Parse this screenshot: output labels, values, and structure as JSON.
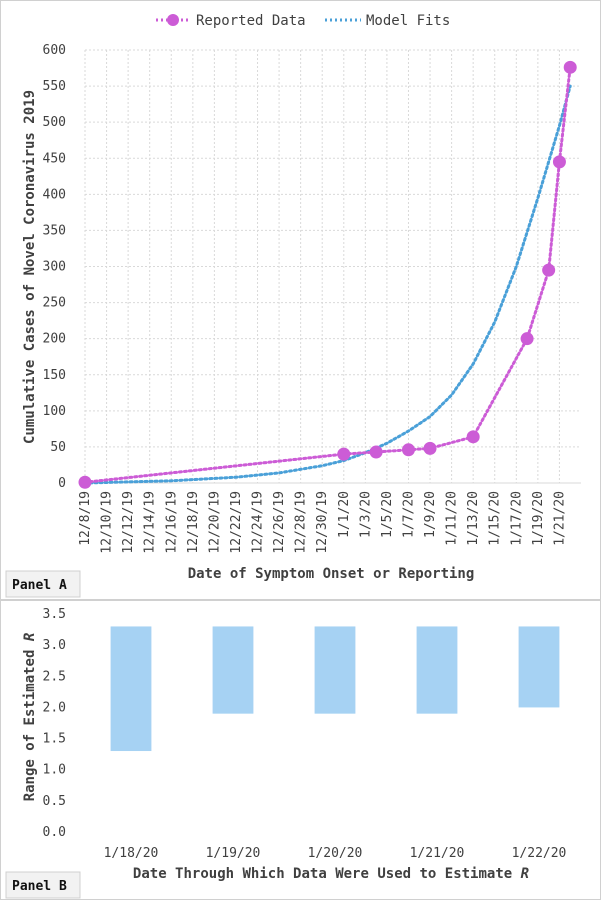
{
  "panel_a_label": "Panel A",
  "panel_b_label": "Panel B",
  "colors": {
    "reported": "#cc5cd6",
    "model": "#4aa0d8",
    "bar": "#a6d2f3",
    "grid": "#d9d9d9",
    "text": "#404040"
  },
  "chart_data": [
    {
      "type": "line",
      "legend": {
        "placement": "top",
        "entries": [
          "Reported Data",
          "Model Fits"
        ]
      },
      "xlabel": "Date of Symptom Onset or Reporting",
      "ylabel": "Cumulative Cases of Novel Coronavirus 2019",
      "ylim": [
        0,
        600
      ],
      "yticks": [
        0,
        50,
        100,
        150,
        200,
        250,
        300,
        350,
        400,
        450,
        500,
        550,
        600
      ],
      "xlim": [
        "2019-12-08",
        "2020-01-23"
      ],
      "xtick_labels": [
        "12/8/19",
        "12/10/19",
        "12/12/19",
        "12/14/19",
        "12/16/19",
        "12/18/19",
        "12/20/19",
        "12/22/19",
        "12/24/19",
        "12/26/19",
        "12/28/19",
        "12/30/19",
        "1/1/20",
        "1/3/20",
        "1/5/20",
        "1/7/20",
        "1/9/20",
        "1/11/20",
        "1/13/20",
        "1/15/20",
        "1/17/20",
        "1/19/20",
        "1/21/20"
      ],
      "grid": true,
      "series": [
        {
          "name": "Reported Data",
          "x": [
            "2019-12-08",
            "2020-01-01",
            "2020-01-04",
            "2020-01-07",
            "2020-01-09",
            "2020-01-13",
            "2020-01-18",
            "2020-01-20",
            "2020-01-21",
            "2020-01-22"
          ],
          "y": [
            1,
            40,
            43,
            46,
            48,
            64,
            200,
            295,
            445,
            576
          ]
        },
        {
          "name": "Model Fits",
          "x": [
            "2019-12-08",
            "2019-12-16",
            "2019-12-22",
            "2019-12-26",
            "2019-12-30",
            "2020-01-01",
            "2020-01-03",
            "2020-01-05",
            "2020-01-07",
            "2020-01-09",
            "2020-01-11",
            "2020-01-13",
            "2020-01-15",
            "2020-01-17",
            "2020-01-19",
            "2020-01-21",
            "2020-01-22"
          ],
          "y": [
            0,
            3,
            8,
            14,
            24,
            31,
            42,
            55,
            72,
            92,
            122,
            165,
            223,
            300,
            395,
            495,
            550
          ]
        }
      ]
    },
    {
      "type": "bar",
      "xlabel": "Date Through Which Data Were Used to Estimate ",
      "xlabel_italic": "R",
      "ylabel": "Range of Estimated ",
      "ylabel_italic": "R",
      "ylim": [
        0,
        3.5
      ],
      "yticks": [
        "0.0",
        "0.5",
        "1.0",
        "1.5",
        "2.0",
        "2.5",
        "3.0",
        "3.5"
      ],
      "grid": false,
      "categories": [
        "1/18/20",
        "1/19/20",
        "1/20/20",
        "1/21/20",
        "1/22/20"
      ],
      "ranges": [
        [
          1.3,
          3.3
        ],
        [
          1.9,
          3.3
        ],
        [
          1.9,
          3.3
        ],
        [
          1.9,
          3.3
        ],
        [
          2.0,
          3.3
        ]
      ]
    }
  ]
}
